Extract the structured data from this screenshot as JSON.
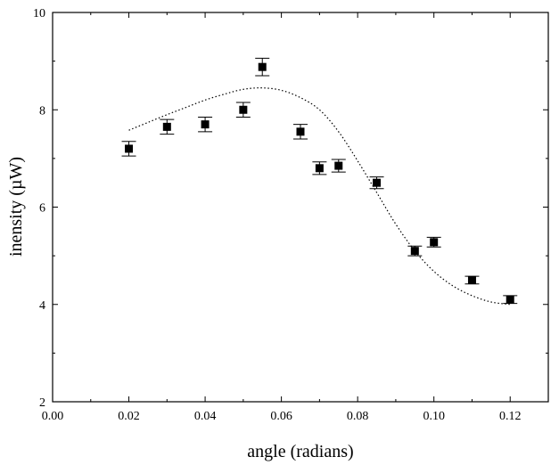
{
  "chart_data": {
    "type": "scatter",
    "title": "",
    "xlabel": "angle (radians)",
    "ylabel": "inensity (µW)",
    "xlim": [
      0.0,
      0.13
    ],
    "ylim": [
      2,
      10
    ],
    "x_ticks": [
      0.0,
      0.02,
      0.04,
      0.06,
      0.08,
      0.1,
      0.12
    ],
    "x_tick_labels": [
      "0.00",
      "0.02",
      "0.04",
      "0.06",
      "0.08",
      "0.10",
      "0.12"
    ],
    "y_ticks": [
      2,
      4,
      6,
      8,
      10
    ],
    "y_tick_labels": [
      "2",
      "4",
      "6",
      "8",
      "10"
    ],
    "grid": false,
    "series": [
      {
        "kind": "points",
        "marker": "square",
        "color": "#000000",
        "x": [
          0.02,
          0.03,
          0.04,
          0.05,
          0.055,
          0.065,
          0.07,
          0.075,
          0.085,
          0.095,
          0.1,
          0.11,
          0.12
        ],
        "y": [
          7.2,
          7.65,
          7.7,
          8.0,
          8.88,
          7.55,
          6.8,
          6.85,
          6.5,
          5.1,
          5.28,
          4.5,
          4.1
        ],
        "error": [
          0.15,
          0.15,
          0.15,
          0.15,
          0.18,
          0.15,
          0.13,
          0.13,
          0.12,
          0.1,
          0.1,
          0.08,
          0.08
        ]
      },
      {
        "kind": "fit-curve",
        "style": "dotted",
        "color": "#000000",
        "x": [
          0.02,
          0.025,
          0.03,
          0.035,
          0.04,
          0.045,
          0.05,
          0.055,
          0.06,
          0.065,
          0.07,
          0.075,
          0.08,
          0.085,
          0.09,
          0.095,
          0.1,
          0.105,
          0.11,
          0.115,
          0.12
        ],
        "y": [
          7.58,
          7.74,
          7.9,
          8.05,
          8.2,
          8.32,
          8.42,
          8.45,
          8.4,
          8.25,
          8.0,
          7.55,
          6.95,
          6.3,
          5.65,
          5.1,
          4.68,
          4.38,
          4.18,
          4.05,
          4.0
        ]
      }
    ]
  }
}
